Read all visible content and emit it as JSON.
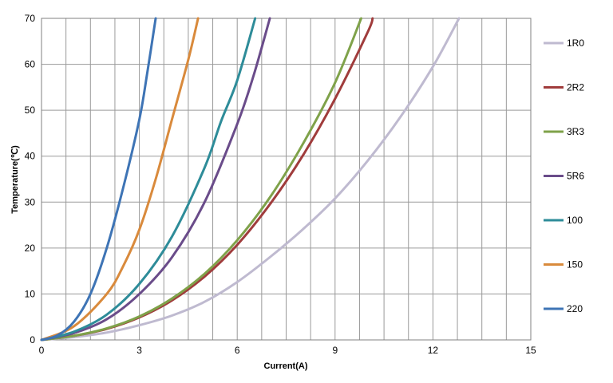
{
  "chart_data": {
    "type": "line",
    "xlabel": "Current(A)",
    "ylabel": "Temperature(℃)",
    "xlim": [
      0,
      15
    ],
    "ylim": [
      0,
      70
    ],
    "xticks": [
      0,
      3,
      6,
      9,
      12,
      15
    ],
    "yticks": [
      0,
      10,
      20,
      30,
      40,
      50,
      60,
      70
    ],
    "x_tick_labels": [
      "0",
      "3",
      "6",
      "9",
      "12",
      "15"
    ],
    "y_tick_labels": [
      "0",
      "10",
      "20",
      "30",
      "40",
      "50",
      "60",
      "70"
    ],
    "grid": true,
    "legend_position": "right",
    "series": [
      {
        "name": "1R0",
        "color": "#bfbad0",
        "x": [
          0,
          1,
          2,
          3,
          4,
          5,
          6,
          7,
          8,
          9,
          10,
          11,
          12,
          12.8
        ],
        "y": [
          0,
          0.6,
          1.6,
          3.2,
          5.3,
          8.3,
          12.6,
          18.0,
          24.0,
          30.8,
          39.0,
          48.5,
          59.5,
          70
        ]
      },
      {
        "name": "2R2",
        "color": "#a03c3c",
        "x": [
          0,
          1,
          2,
          3,
          4,
          5,
          6,
          7,
          8,
          9,
          10,
          10.15
        ],
        "y": [
          0,
          0.9,
          2.4,
          4.9,
          8.6,
          13.8,
          20.7,
          29.5,
          40.0,
          52.5,
          67.0,
          70
        ]
      },
      {
        "name": "3R3",
        "color": "#7fa24a",
        "x": [
          0,
          1,
          2,
          3,
          4,
          5,
          6,
          7,
          8,
          9,
          9.8
        ],
        "y": [
          0,
          0.9,
          2.5,
          5.1,
          9.0,
          14.4,
          21.7,
          31.0,
          42.5,
          56.0,
          70
        ]
      },
      {
        "name": "5R6",
        "color": "#6a4c8a",
        "x": [
          0,
          1,
          2,
          3,
          4,
          5,
          6,
          6.5,
          7.0
        ],
        "y": [
          0,
          1.5,
          4.5,
          10.0,
          18.0,
          30.0,
          47.0,
          57.5,
          70
        ]
      },
      {
        "name": "100",
        "color": "#2e8c99",
        "x": [
          0,
          1,
          2,
          3,
          4,
          5,
          5.5,
          6.0,
          6.55
        ],
        "y": [
          0,
          1.8,
          5.5,
          12.2,
          22.5,
          37.5,
          47.5,
          56.5,
          70
        ]
      },
      {
        "name": "150",
        "color": "#d98a3c",
        "x": [
          0,
          1,
          2,
          2.5,
          3,
          3.5,
          4,
          4.5,
          4.8
        ],
        "y": [
          0,
          3.0,
          10.0,
          16.0,
          24.0,
          35.0,
          48.0,
          61.0,
          70
        ]
      },
      {
        "name": "220",
        "color": "#3e74b5",
        "x": [
          0,
          0.5,
          1,
          1.5,
          2,
          2.5,
          3,
          3.25,
          3.5
        ],
        "y": [
          0,
          1.0,
          4.0,
          10.0,
          20.0,
          33.0,
          48.0,
          58.5,
          70
        ]
      }
    ]
  }
}
